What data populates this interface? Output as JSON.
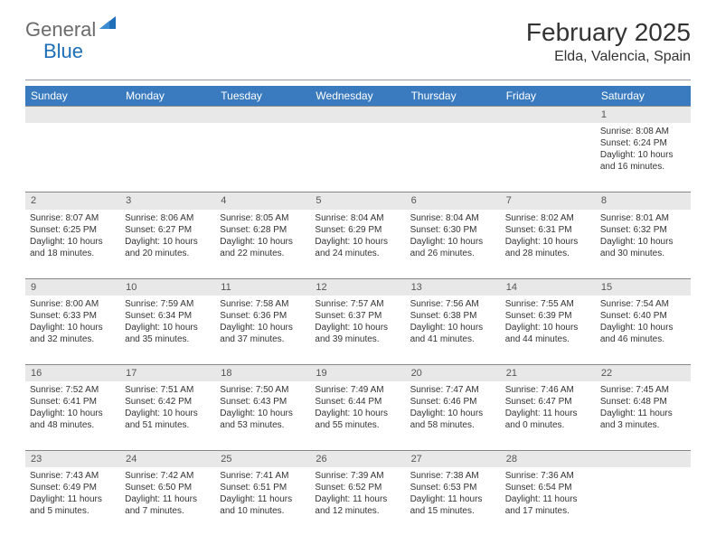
{
  "logo": {
    "word1": "General",
    "word2": "Blue"
  },
  "header": {
    "title": "February 2025",
    "location": "Elda, Valencia, Spain"
  },
  "colors": {
    "header_bg": "#3a7bbf",
    "header_fg": "#ffffff",
    "daynum_bg": "#e8e8e8",
    "daynum_border": "#888888",
    "logo_gray": "#6b6b6b",
    "logo_blue": "#1e6fb8"
  },
  "weekdays": [
    "Sunday",
    "Monday",
    "Tuesday",
    "Wednesday",
    "Thursday",
    "Friday",
    "Saturday"
  ],
  "weeks": [
    {
      "nums": [
        "",
        "",
        "",
        "",
        "",
        "",
        "1"
      ],
      "details": [
        "",
        "",
        "",
        "",
        "",
        "",
        "Sunrise: 8:08 AM|Sunset: 6:24 PM|Daylight: 10 hours and 16 minutes."
      ]
    },
    {
      "nums": [
        "2",
        "3",
        "4",
        "5",
        "6",
        "7",
        "8"
      ],
      "details": [
        "Sunrise: 8:07 AM|Sunset: 6:25 PM|Daylight: 10 hours and 18 minutes.",
        "Sunrise: 8:06 AM|Sunset: 6:27 PM|Daylight: 10 hours and 20 minutes.",
        "Sunrise: 8:05 AM|Sunset: 6:28 PM|Daylight: 10 hours and 22 minutes.",
        "Sunrise: 8:04 AM|Sunset: 6:29 PM|Daylight: 10 hours and 24 minutes.",
        "Sunrise: 8:04 AM|Sunset: 6:30 PM|Daylight: 10 hours and 26 minutes.",
        "Sunrise: 8:02 AM|Sunset: 6:31 PM|Daylight: 10 hours and 28 minutes.",
        "Sunrise: 8:01 AM|Sunset: 6:32 PM|Daylight: 10 hours and 30 minutes."
      ]
    },
    {
      "nums": [
        "9",
        "10",
        "11",
        "12",
        "13",
        "14",
        "15"
      ],
      "details": [
        "Sunrise: 8:00 AM|Sunset: 6:33 PM|Daylight: 10 hours and 32 minutes.",
        "Sunrise: 7:59 AM|Sunset: 6:34 PM|Daylight: 10 hours and 35 minutes.",
        "Sunrise: 7:58 AM|Sunset: 6:36 PM|Daylight: 10 hours and 37 minutes.",
        "Sunrise: 7:57 AM|Sunset: 6:37 PM|Daylight: 10 hours and 39 minutes.",
        "Sunrise: 7:56 AM|Sunset: 6:38 PM|Daylight: 10 hours and 41 minutes.",
        "Sunrise: 7:55 AM|Sunset: 6:39 PM|Daylight: 10 hours and 44 minutes.",
        "Sunrise: 7:54 AM|Sunset: 6:40 PM|Daylight: 10 hours and 46 minutes."
      ]
    },
    {
      "nums": [
        "16",
        "17",
        "18",
        "19",
        "20",
        "21",
        "22"
      ],
      "details": [
        "Sunrise: 7:52 AM|Sunset: 6:41 PM|Daylight: 10 hours and 48 minutes.",
        "Sunrise: 7:51 AM|Sunset: 6:42 PM|Daylight: 10 hours and 51 minutes.",
        "Sunrise: 7:50 AM|Sunset: 6:43 PM|Daylight: 10 hours and 53 minutes.",
        "Sunrise: 7:49 AM|Sunset: 6:44 PM|Daylight: 10 hours and 55 minutes.",
        "Sunrise: 7:47 AM|Sunset: 6:46 PM|Daylight: 10 hours and 58 minutes.",
        "Sunrise: 7:46 AM|Sunset: 6:47 PM|Daylight: 11 hours and 0 minutes.",
        "Sunrise: 7:45 AM|Sunset: 6:48 PM|Daylight: 11 hours and 3 minutes."
      ]
    },
    {
      "nums": [
        "23",
        "24",
        "25",
        "26",
        "27",
        "28",
        ""
      ],
      "details": [
        "Sunrise: 7:43 AM|Sunset: 6:49 PM|Daylight: 11 hours and 5 minutes.",
        "Sunrise: 7:42 AM|Sunset: 6:50 PM|Daylight: 11 hours and 7 minutes.",
        "Sunrise: 7:41 AM|Sunset: 6:51 PM|Daylight: 11 hours and 10 minutes.",
        "Sunrise: 7:39 AM|Sunset: 6:52 PM|Daylight: 11 hours and 12 minutes.",
        "Sunrise: 7:38 AM|Sunset: 6:53 PM|Daylight: 11 hours and 15 minutes.",
        "Sunrise: 7:36 AM|Sunset: 6:54 PM|Daylight: 11 hours and 17 minutes.",
        ""
      ]
    }
  ]
}
